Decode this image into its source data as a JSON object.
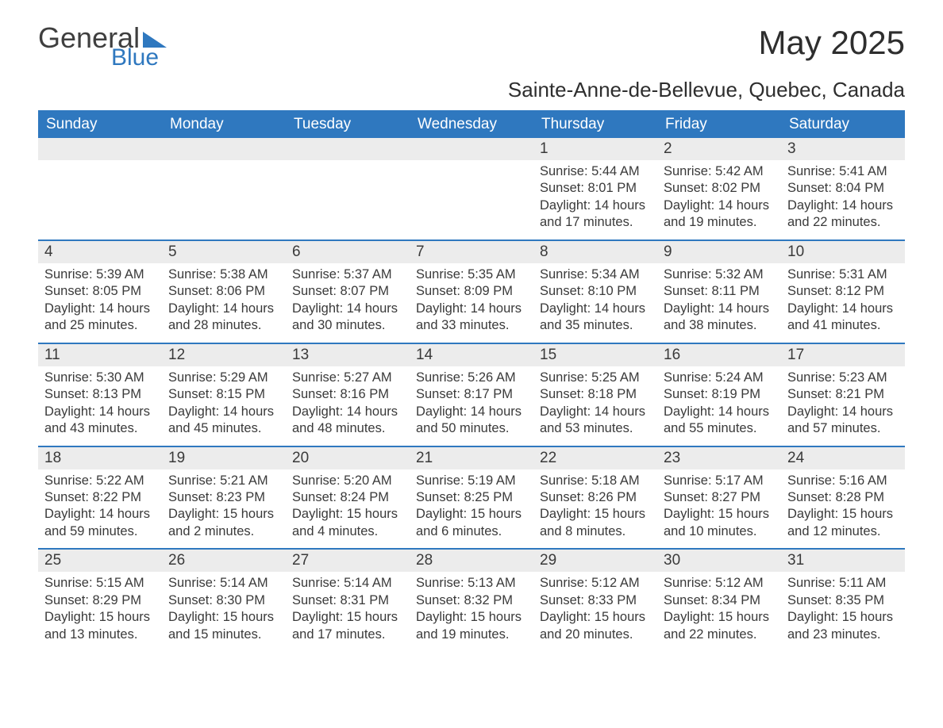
{
  "brand": {
    "general": "General",
    "blue": "Blue",
    "tri_color": "#2f78bf"
  },
  "title": "May 2025",
  "location": "Sainte-Anne-de-Bellevue, Quebec, Canada",
  "colors": {
    "header_bg": "#2f78bf",
    "header_text": "#ffffff",
    "daybar_bg": "#ececec",
    "daybar_border": "#2f78bf",
    "body_text": "#3a3a3a",
    "page_bg": "#ffffff"
  },
  "fonts": {
    "title_size_pt": 32,
    "location_size_pt": 20,
    "header_size_pt": 14,
    "body_size_pt": 12
  },
  "layout": {
    "type": "calendar-grid",
    "columns": 7,
    "rows": 5,
    "first_weekday_index": 4
  },
  "weekdays": [
    "Sunday",
    "Monday",
    "Tuesday",
    "Wednesday",
    "Thursday",
    "Friday",
    "Saturday"
  ],
  "days": [
    {
      "n": 1,
      "sunrise": "5:44 AM",
      "sunset": "8:01 PM",
      "daylight": "14 hours and 17 minutes."
    },
    {
      "n": 2,
      "sunrise": "5:42 AM",
      "sunset": "8:02 PM",
      "daylight": "14 hours and 19 minutes."
    },
    {
      "n": 3,
      "sunrise": "5:41 AM",
      "sunset": "8:04 PM",
      "daylight": "14 hours and 22 minutes."
    },
    {
      "n": 4,
      "sunrise": "5:39 AM",
      "sunset": "8:05 PM",
      "daylight": "14 hours and 25 minutes."
    },
    {
      "n": 5,
      "sunrise": "5:38 AM",
      "sunset": "8:06 PM",
      "daylight": "14 hours and 28 minutes."
    },
    {
      "n": 6,
      "sunrise": "5:37 AM",
      "sunset": "8:07 PM",
      "daylight": "14 hours and 30 minutes."
    },
    {
      "n": 7,
      "sunrise": "5:35 AM",
      "sunset": "8:09 PM",
      "daylight": "14 hours and 33 minutes."
    },
    {
      "n": 8,
      "sunrise": "5:34 AM",
      "sunset": "8:10 PM",
      "daylight": "14 hours and 35 minutes."
    },
    {
      "n": 9,
      "sunrise": "5:32 AM",
      "sunset": "8:11 PM",
      "daylight": "14 hours and 38 minutes."
    },
    {
      "n": 10,
      "sunrise": "5:31 AM",
      "sunset": "8:12 PM",
      "daylight": "14 hours and 41 minutes."
    },
    {
      "n": 11,
      "sunrise": "5:30 AM",
      "sunset": "8:13 PM",
      "daylight": "14 hours and 43 minutes."
    },
    {
      "n": 12,
      "sunrise": "5:29 AM",
      "sunset": "8:15 PM",
      "daylight": "14 hours and 45 minutes."
    },
    {
      "n": 13,
      "sunrise": "5:27 AM",
      "sunset": "8:16 PM",
      "daylight": "14 hours and 48 minutes."
    },
    {
      "n": 14,
      "sunrise": "5:26 AM",
      "sunset": "8:17 PM",
      "daylight": "14 hours and 50 minutes."
    },
    {
      "n": 15,
      "sunrise": "5:25 AM",
      "sunset": "8:18 PM",
      "daylight": "14 hours and 53 minutes."
    },
    {
      "n": 16,
      "sunrise": "5:24 AM",
      "sunset": "8:19 PM",
      "daylight": "14 hours and 55 minutes."
    },
    {
      "n": 17,
      "sunrise": "5:23 AM",
      "sunset": "8:21 PM",
      "daylight": "14 hours and 57 minutes."
    },
    {
      "n": 18,
      "sunrise": "5:22 AM",
      "sunset": "8:22 PM",
      "daylight": "14 hours and 59 minutes."
    },
    {
      "n": 19,
      "sunrise": "5:21 AM",
      "sunset": "8:23 PM",
      "daylight": "15 hours and 2 minutes."
    },
    {
      "n": 20,
      "sunrise": "5:20 AM",
      "sunset": "8:24 PM",
      "daylight": "15 hours and 4 minutes."
    },
    {
      "n": 21,
      "sunrise": "5:19 AM",
      "sunset": "8:25 PM",
      "daylight": "15 hours and 6 minutes."
    },
    {
      "n": 22,
      "sunrise": "5:18 AM",
      "sunset": "8:26 PM",
      "daylight": "15 hours and 8 minutes."
    },
    {
      "n": 23,
      "sunrise": "5:17 AM",
      "sunset": "8:27 PM",
      "daylight": "15 hours and 10 minutes."
    },
    {
      "n": 24,
      "sunrise": "5:16 AM",
      "sunset": "8:28 PM",
      "daylight": "15 hours and 12 minutes."
    },
    {
      "n": 25,
      "sunrise": "5:15 AM",
      "sunset": "8:29 PM",
      "daylight": "15 hours and 13 minutes."
    },
    {
      "n": 26,
      "sunrise": "5:14 AM",
      "sunset": "8:30 PM",
      "daylight": "15 hours and 15 minutes."
    },
    {
      "n": 27,
      "sunrise": "5:14 AM",
      "sunset": "8:31 PM",
      "daylight": "15 hours and 17 minutes."
    },
    {
      "n": 28,
      "sunrise": "5:13 AM",
      "sunset": "8:32 PM",
      "daylight": "15 hours and 19 minutes."
    },
    {
      "n": 29,
      "sunrise": "5:12 AM",
      "sunset": "8:33 PM",
      "daylight": "15 hours and 20 minutes."
    },
    {
      "n": 30,
      "sunrise": "5:12 AM",
      "sunset": "8:34 PM",
      "daylight": "15 hours and 22 minutes."
    },
    {
      "n": 31,
      "sunrise": "5:11 AM",
      "sunset": "8:35 PM",
      "daylight": "15 hours and 23 minutes."
    }
  ],
  "labels": {
    "sunrise": "Sunrise:",
    "sunset": "Sunset:",
    "daylight": "Daylight:"
  }
}
